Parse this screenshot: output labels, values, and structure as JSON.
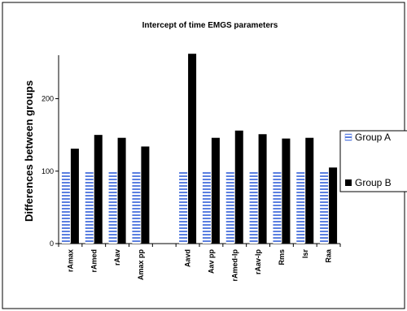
{
  "chart_data": {
    "type": "bar",
    "title": "Intercept of time EMGS parameters",
    "ylabel": "Differences between groups",
    "xlabel": "",
    "ylim": [
      0,
      260
    ],
    "yticks": [
      0,
      100,
      200
    ],
    "categories": [
      "rAmax",
      "rAmed",
      "rAav",
      "Amax pp",
      "",
      "Aavd",
      "Aav pp",
      "rAmed-lp",
      "rAav-lp",
      "Rms",
      "lsr",
      "Raa"
    ],
    "series": [
      {
        "name": "Group A",
        "values": [
          100,
          100,
          100,
          100,
          null,
          100,
          100,
          100,
          100,
          100,
          100,
          100
        ],
        "color": "#5b7fe0",
        "pattern": "horizontal-stripes"
      },
      {
        "name": "Group B",
        "values": [
          131,
          150,
          146,
          134,
          null,
          262,
          146,
          156,
          151,
          145,
          146,
          105
        ],
        "color": "#000000"
      }
    ],
    "grid": false,
    "legend_position": "right"
  }
}
